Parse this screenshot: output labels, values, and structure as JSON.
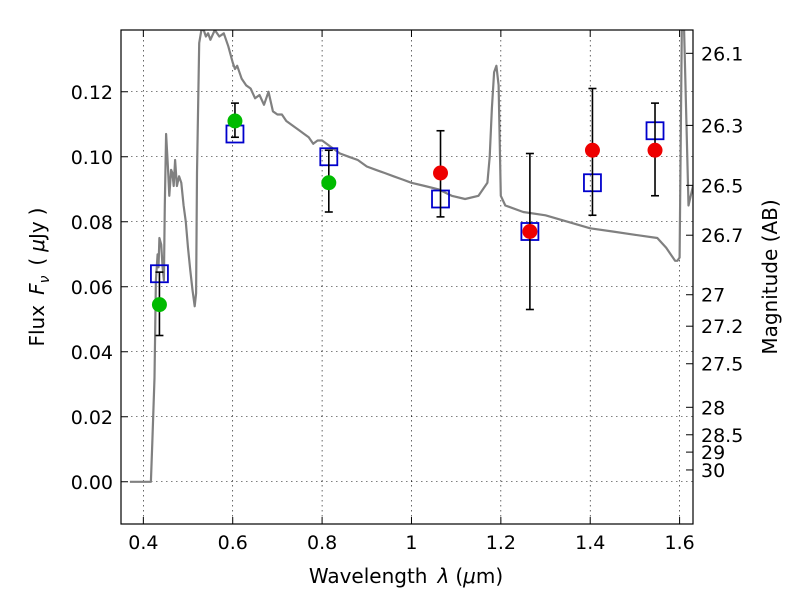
{
  "chart_data": {
    "type": "scatter",
    "xlim": [
      0.35,
      1.63
    ],
    "ylim": [
      -0.013,
      0.139
    ],
    "grid": true,
    "xlabel_text": "Wavelength",
    "xlabel_symbol": "λ",
    "xlabel_unit_open": "(",
    "xlabel_unit_mu": "μ",
    "xlabel_unit_rest": "m)",
    "ylabel_text": "Flux",
    "ylabel_symbol_main": "F",
    "ylabel_symbol_sub": "ν",
    "ylabel_unit_open": "(",
    "ylabel_unit_mu": "μ",
    "ylabel_unit_rest": "Jy",
    "ylabel_unit_close": ")",
    "y2label": "Magnitude (AB)",
    "xticks": [
      {
        "value": 0.4,
        "label": "0.4"
      },
      {
        "value": 0.6,
        "label": "0.6"
      },
      {
        "value": 0.8,
        "label": "0.8"
      },
      {
        "value": 1.0,
        "label": "1"
      },
      {
        "value": 1.2,
        "label": "1.2"
      },
      {
        "value": 1.4,
        "label": "1.4"
      },
      {
        "value": 1.6,
        "label": "1.6"
      }
    ],
    "yticks": [
      {
        "value": 0.0,
        "label": "0.00"
      },
      {
        "value": 0.02,
        "label": "0.02"
      },
      {
        "value": 0.04,
        "label": "0.04"
      },
      {
        "value": 0.06,
        "label": "0.06"
      },
      {
        "value": 0.08,
        "label": "0.08"
      },
      {
        "value": 0.1,
        "label": "0.10"
      },
      {
        "value": 0.12,
        "label": "0.12"
      }
    ],
    "y2ticks": [
      {
        "value": 26.1,
        "label": "26.1"
      },
      {
        "value": 26.3,
        "label": "26.3"
      },
      {
        "value": 26.5,
        "label": "26.5"
      },
      {
        "value": 26.7,
        "label": "26.7"
      },
      {
        "value": 27.0,
        "label": "27"
      },
      {
        "value": 27.2,
        "label": "27.2"
      },
      {
        "value": 27.5,
        "label": "27.5"
      },
      {
        "value": 28.0,
        "label": "28"
      },
      {
        "value": 28.5,
        "label": "28.5"
      },
      {
        "value": 29.0,
        "label": "29"
      },
      {
        "value": 30.0,
        "label": "30"
      }
    ],
    "series": [
      {
        "kind": "line",
        "color": "#808080",
        "x": [
          0.37,
          0.375,
          0.378,
          0.382,
          0.385,
          0.388,
          0.393,
          0.395,
          0.4,
          0.405,
          0.41,
          0.413,
          0.417,
          0.42,
          0.425,
          0.428,
          0.432,
          0.434,
          0.436,
          0.44,
          0.443,
          0.446,
          0.448,
          0.451,
          0.455,
          0.458,
          0.462,
          0.465,
          0.468,
          0.471,
          0.475,
          0.48,
          0.485,
          0.49,
          0.495,
          0.5,
          0.505,
          0.51,
          0.515,
          0.518,
          0.52,
          0.525,
          0.53,
          0.535,
          0.54,
          0.545,
          0.55,
          0.56,
          0.57,
          0.58,
          0.59,
          0.6,
          0.605,
          0.61,
          0.62,
          0.63,
          0.64,
          0.65,
          0.66,
          0.67,
          0.68,
          0.69,
          0.7,
          0.71,
          0.72,
          0.73,
          0.74,
          0.75,
          0.76,
          0.77,
          0.78,
          0.79,
          0.8,
          0.82,
          0.84,
          0.86,
          0.88,
          0.9,
          0.92,
          0.94,
          0.96,
          0.98,
          1.0,
          1.03,
          1.06,
          1.09,
          1.12,
          1.15,
          1.17,
          1.175,
          1.18,
          1.185,
          1.19,
          1.195,
          1.2,
          1.21,
          1.25,
          1.3,
          1.35,
          1.4,
          1.45,
          1.5,
          1.55,
          1.57,
          1.59,
          1.595,
          1.6,
          1.605,
          1.61,
          1.62,
          1.63
        ],
        "y": [
          0.0,
          0.0,
          0.0,
          0.0,
          0.0,
          0.0,
          0.0,
          0.0,
          0.0,
          0.0,
          0.0,
          0.0,
          0.0,
          0.012,
          0.032,
          0.062,
          0.07,
          0.066,
          0.075,
          0.073,
          0.066,
          0.062,
          0.085,
          0.107,
          0.097,
          0.088,
          0.096,
          0.095,
          0.091,
          0.099,
          0.091,
          0.094,
          0.092,
          0.085,
          0.08,
          0.072,
          0.065,
          0.059,
          0.054,
          0.058,
          0.095,
          0.135,
          0.139,
          0.139,
          0.137,
          0.138,
          0.136,
          0.139,
          0.137,
          0.138,
          0.134,
          0.129,
          0.127,
          0.128,
          0.124,
          0.122,
          0.121,
          0.118,
          0.119,
          0.116,
          0.12,
          0.114,
          0.113,
          0.113,
          0.111,
          0.11,
          0.109,
          0.108,
          0.107,
          0.106,
          0.104,
          0.105,
          0.105,
          0.103,
          0.101,
          0.1,
          0.099,
          0.097,
          0.096,
          0.095,
          0.094,
          0.093,
          0.092,
          0.091,
          0.09,
          0.088,
          0.087,
          0.088,
          0.092,
          0.1,
          0.115,
          0.126,
          0.128,
          0.122,
          0.088,
          0.085,
          0.083,
          0.082,
          0.08,
          0.078,
          0.077,
          0.076,
          0.075,
          0.072,
          0.068,
          0.068,
          0.069,
          0.139,
          0.139,
          0.085,
          0.091
        ]
      },
      {
        "kind": "points",
        "marker": "square-open",
        "color": "#0000cc",
        "x": [
          0.436,
          0.605,
          0.815,
          1.065,
          1.265,
          1.405,
          1.545
        ],
        "y": [
          0.064,
          0.107,
          0.1,
          0.087,
          0.077,
          0.092,
          0.108
        ]
      },
      {
        "kind": "points",
        "marker": "circle",
        "color": "#00bb00",
        "x": [
          0.436,
          0.605,
          0.815
        ],
        "y": [
          0.0545,
          0.111,
          0.092
        ],
        "yerr_low": [
          0.045,
          0.106,
          0.083
        ],
        "yerr_high": [
          0.0645,
          0.1165,
          0.102
        ]
      },
      {
        "kind": "points",
        "marker": "circle",
        "color": "#ee0000",
        "x": [
          1.065,
          1.265,
          1.405,
          1.545
        ],
        "y": [
          0.095,
          0.077,
          0.102,
          0.102
        ],
        "yerr_low": [
          0.0815,
          0.053,
          0.082,
          0.088
        ],
        "yerr_high": [
          0.108,
          0.101,
          0.121,
          0.1165
        ]
      }
    ]
  }
}
